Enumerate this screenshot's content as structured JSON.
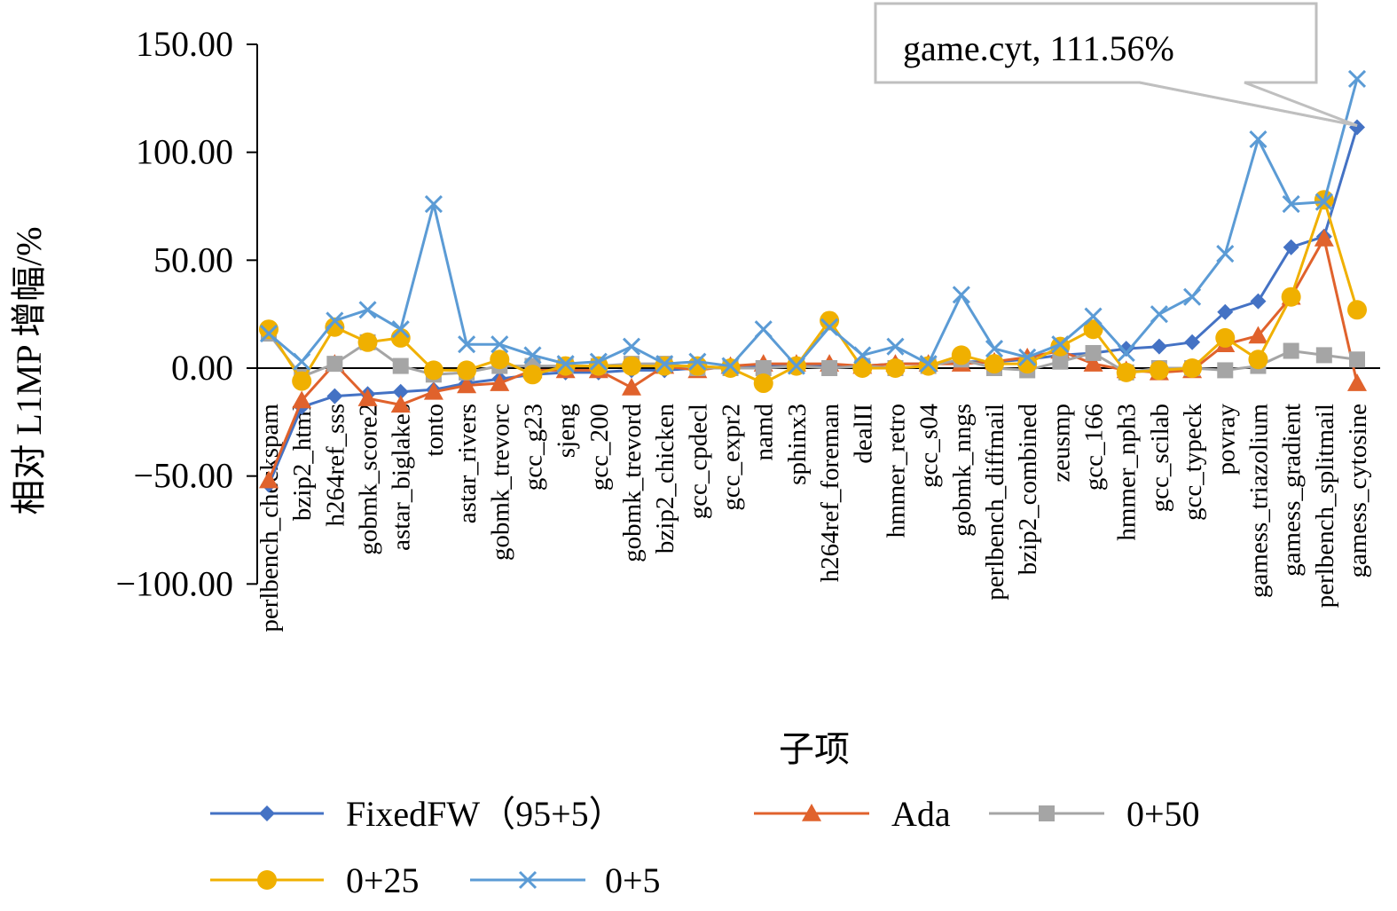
{
  "chart_data": {
    "type": "line",
    "title": "",
    "xlabel": "子项",
    "ylabel": "相对 L1MP 增幅/%",
    "ylim": [
      -100,
      150
    ],
    "yticks": [
      "150.00",
      "100.00",
      "50.00",
      "0.00",
      "−50.00",
      "−100.00"
    ],
    "ytick_values": [
      150,
      100,
      50,
      0,
      -50,
      -100
    ],
    "grid": false,
    "legend_position": "bottom",
    "categories": [
      "perlbench_checkspam",
      "bzip2_html",
      "h264ref_sss",
      "gobmk_score2",
      "astar_biglakes",
      "tonto",
      "astar_rivers",
      "gobmk_trevorc",
      "gcc_g23",
      "sjeng",
      "gcc_200",
      "gobmk_trevord",
      "bzip2_chicken",
      "gcc_cpdecl",
      "gcc_expr2",
      "namd",
      "sphinx3",
      "h264ref_foreman",
      "dealII",
      "hmmer_retro",
      "gcc_s04",
      "gobmk_nngs",
      "perlbench_diffmail",
      "bzip2_combined",
      "zeusmp",
      "gcc_166",
      "hmmer_nph3",
      "gcc_scilab",
      "gcc_typeck",
      "povray",
      "gamess_triazolium",
      "gamess_gradient",
      "perlbench_splitmail",
      "gamess_cytosine"
    ],
    "series": [
      {
        "name": "FixedFW（95+5）",
        "color": "#4472C4",
        "marker": "diamond",
        "values": [
          -54,
          -18,
          -13,
          -12,
          -11,
          -10,
          -7,
          -5,
          -3,
          -2,
          -2,
          -1,
          -1,
          0,
          0,
          1,
          1,
          1,
          1,
          2,
          2,
          3,
          3,
          4,
          6,
          7,
          9,
          10,
          12,
          26,
          31,
          56,
          61,
          111.56
        ]
      },
      {
        "name": "Ada",
        "color": "#E0622C",
        "marker": "triangle",
        "values": [
          -52,
          -15,
          2,
          -14,
          -17,
          -11,
          -8,
          -7,
          -1,
          -1,
          -1,
          -9,
          1,
          -1,
          1,
          2,
          2,
          2,
          1,
          2,
          2,
          2,
          3,
          5,
          8,
          2,
          -1,
          -2,
          -1,
          11,
          15,
          33,
          60,
          -7
        ]
      },
      {
        "name": "0+50",
        "color": "#A5A5A5",
        "marker": "square",
        "values": [
          16,
          -4,
          2,
          12,
          1,
          -3,
          -2,
          1,
          1,
          1,
          1,
          2,
          2,
          0,
          0,
          0,
          1,
          0,
          1,
          0,
          1,
          4,
          0,
          -1,
          3,
          7,
          -2,
          0,
          0,
          -1,
          1,
          8,
          6,
          4
        ]
      },
      {
        "name": "0+25",
        "color": "#F0B000",
        "marker": "circle",
        "values": [
          18,
          -6,
          19,
          12,
          14,
          -1,
          -1,
          4,
          -3,
          1,
          1,
          1,
          1,
          1,
          0,
          -7,
          1,
          22,
          0,
          0,
          1,
          6,
          2,
          2,
          10,
          18,
          -2,
          -1,
          0,
          14,
          4,
          33,
          78,
          27
        ]
      },
      {
        "name": "0+5",
        "color": "#5B9BD5",
        "marker": "cross",
        "values": [
          16,
          3,
          22,
          27,
          18,
          76,
          11,
          11,
          6,
          2,
          3,
          10,
          2,
          3,
          1,
          18,
          1,
          19,
          6,
          10,
          2,
          34,
          9,
          5,
          11,
          24,
          7,
          25,
          33,
          53,
          106,
          76,
          77,
          134
        ]
      }
    ],
    "annotation": {
      "text": "game.cyt, 111.56%",
      "category": "gamess_cytosine",
      "series": "FixedFW（95+5）"
    }
  }
}
